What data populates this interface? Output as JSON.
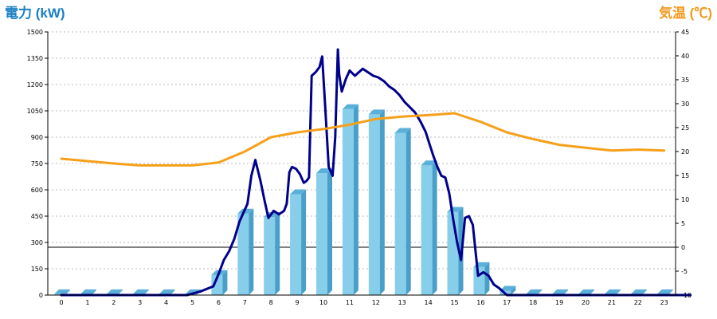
{
  "chart_data": {
    "type": "bar",
    "title": "",
    "left_axis_title": "電力 (kW)",
    "right_axis_title": "気温 (℃)",
    "colors": {
      "left_title": "#1a7fc4",
      "right_title": "#f29a1e",
      "bar_front": "#87ceeb",
      "bar_side": "#4a9fc9",
      "bar_top": "#5bb0d9",
      "power_line": "#00008b",
      "temp_line": "#f5a01a",
      "grid": "#bbbbbb",
      "zero_line": "#000000"
    },
    "categories": [
      "0",
      "1",
      "2",
      "3",
      "4",
      "5",
      "6",
      "7",
      "8",
      "9",
      "10",
      "11",
      "12",
      "13",
      "14",
      "15",
      "16",
      "17",
      "18",
      "19",
      "20",
      "21",
      "22",
      "23"
    ],
    "ylim_left": [
      0,
      1500
    ],
    "yticks_left": [
      "0",
      "150",
      "300",
      "450",
      "600",
      "750",
      "900",
      "1050",
      "1200",
      "1350",
      "1500"
    ],
    "ylim_right": [
      -10,
      45
    ],
    "yticks_right": [
      "-10",
      "-5",
      "0",
      "5",
      "10",
      "15",
      "20",
      "25",
      "30",
      "35",
      "40",
      "45"
    ],
    "grid": true,
    "series": [
      {
        "type": "bar",
        "axis": "left",
        "values": [
          5,
          5,
          5,
          5,
          5,
          5,
          115,
          465,
          445,
          575,
          695,
          1060,
          1030,
          925,
          740,
          475,
          160,
          25,
          5,
          5,
          5,
          5,
          5,
          5
        ]
      },
      {
        "type": "line",
        "axis": "left",
        "x": [
          0,
          4.8,
          5.3,
          5.8,
          6.0,
          6.2,
          6.4,
          6.6,
          6.8,
          7.1,
          7.25,
          7.4,
          7.6,
          7.75,
          7.9,
          8.1,
          8.3,
          8.5,
          8.6,
          8.7,
          8.8,
          8.95,
          9.1,
          9.25,
          9.35,
          9.45,
          9.55,
          9.7,
          9.85,
          9.95,
          10.05,
          10.2,
          10.35,
          10.45,
          10.55,
          10.6,
          10.7,
          10.85,
          11.0,
          11.2,
          11.35,
          11.5,
          11.7,
          11.9,
          12.1,
          12.3,
          12.5,
          12.7,
          12.9,
          13.1,
          13.3,
          13.5,
          13.7,
          13.9,
          14.05,
          14.2,
          14.35,
          14.5,
          14.65,
          14.8,
          14.95,
          15.1,
          15.25,
          15.4,
          15.55,
          15.7,
          15.9,
          16.1,
          16.3,
          16.5,
          16.7,
          16.85,
          17.0,
          24
        ],
        "values": [
          0,
          0,
          20,
          50,
          120,
          200,
          250,
          320,
          420,
          520,
          680,
          770,
          650,
          540,
          440,
          480,
          460,
          480,
          520,
          700,
          730,
          720,
          690,
          640,
          650,
          670,
          1250,
          1270,
          1300,
          1360,
          1120,
          730,
          680,
          900,
          1400,
          1260,
          1160,
          1230,
          1280,
          1250,
          1270,
          1290,
          1270,
          1250,
          1240,
          1220,
          1190,
          1170,
          1140,
          1100,
          1070,
          1040,
          990,
          930,
          860,
          790,
          730,
          680,
          670,
          580,
          430,
          300,
          200,
          440,
          450,
          400,
          110,
          130,
          110,
          60,
          40,
          20,
          0,
          0
        ]
      },
      {
        "type": "line",
        "axis": "right",
        "x": [
          0,
          1,
          2,
          3,
          4,
          5,
          6,
          7,
          8,
          9,
          10,
          11,
          12,
          13,
          14,
          15,
          16,
          17,
          18,
          19,
          20,
          21,
          22,
          23
        ],
        "values": [
          18.5,
          18.0,
          17.5,
          17.1,
          17.1,
          17.1,
          17.7,
          20.0,
          23.0,
          24.0,
          24.7,
          25.6,
          26.8,
          27.3,
          27.6,
          28.0,
          26.2,
          24.0,
          22.6,
          21.4,
          20.8,
          20.2,
          20.4,
          20.2
        ]
      }
    ]
  }
}
